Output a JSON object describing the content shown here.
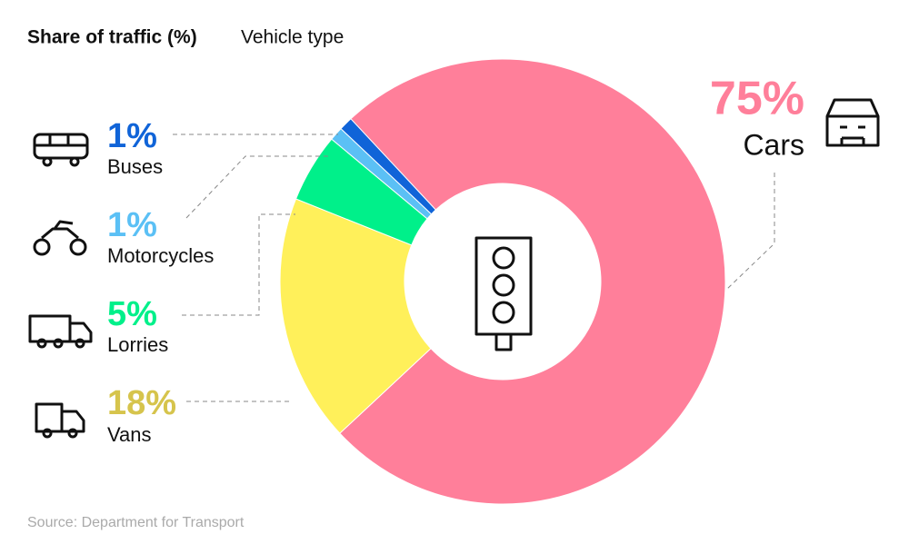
{
  "chart_data": {
    "type": "pie",
    "title": "Share of traffic (%)",
    "subtitle": "Vehicle type",
    "categories": [
      "Cars",
      "Vans",
      "Lorries",
      "Motorcycles",
      "Buses"
    ],
    "values": [
      75,
      18,
      5,
      1,
      1
    ],
    "value_labels": [
      "75%",
      "18%",
      "5%",
      "1%",
      "1%"
    ],
    "colors": [
      "#ff7f9a",
      "#fff05a",
      "#00f08a",
      "#5bc0f5",
      "#1064d8"
    ],
    "source": "Source: Department for Transport"
  }
}
